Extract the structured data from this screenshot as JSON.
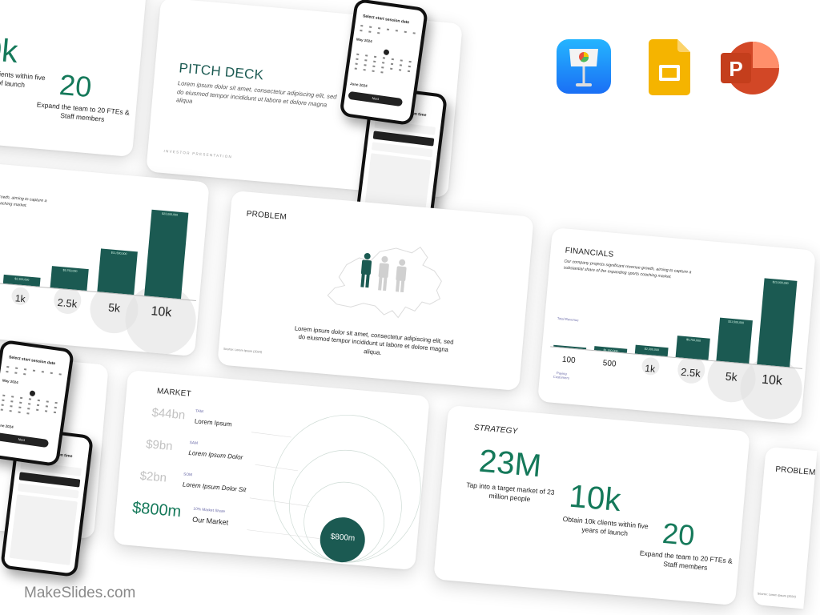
{
  "watermark": "MakeSlides.com",
  "app_icons": [
    "keynote-icon",
    "google-slides-icon",
    "powerpoint-icon"
  ],
  "colors": {
    "brand_dark_green": "#1b5a52",
    "accent_green": "#15795a",
    "muted_gray": "#c2c2c2",
    "tag_purple": "#6a6aa8"
  },
  "strategy": {
    "title": "STRATEGY",
    "stats": [
      {
        "value": "23M",
        "desc": "Tap into a target market of 23 million people"
      },
      {
        "value": "10k",
        "desc": "Obtain 10k clients within five years of launch"
      },
      {
        "value": "20",
        "desc": "Expand the team to 20 FTEs & Staff members"
      }
    ]
  },
  "pitch_deck": {
    "title": "PITCH DECK",
    "body": "Lorem ipsum dolor sit amet, consectetur adipiscing elit, sed do eiusmod tempor incididunt ut labore et dolore magna aliqua",
    "footer": "INVESTOR PRESENTATION",
    "phone_date": {
      "title": "Select start session date",
      "month1": "May 2024",
      "month2": "June 2024",
      "button": "Next"
    },
    "phone_time": {
      "title": "Select start session time"
    }
  },
  "problem": {
    "title": "PROBLEM",
    "body": "Lorem ipsum dolor sit amet, consectetur adipiscing elit, sed do eiusmod tempor incididunt ut labore et dolore magna aliqua.",
    "source": "Source: Lorem Ipsum (2024)"
  },
  "financials": {
    "title": "FINANCIALS",
    "body": "Our company projects significant revenue growth, aiming to capture a substantial share of the expanding sports coaching market.",
    "revenue_label": "Total Revenue",
    "customers_label": "Paying Customers"
  },
  "chart_data": {
    "type": "bar",
    "title": "",
    "xlabel": "Paying Customers",
    "ylabel": "Total Revenue",
    "categories": [
      "100",
      "500",
      "1k",
      "2.5k",
      "5k",
      "10k"
    ],
    "values": [
      230000,
      1150000,
      2300000,
      5750000,
      11500000,
      23000000
    ],
    "data_labels": [
      "",
      "$1,150,000",
      "$2,300,000",
      "$5,750,000",
      "$11,500,000",
      "$23,000,000"
    ],
    "ylim": [
      0,
      23000000
    ],
    "grid": false
  },
  "market": {
    "title": "MARKET",
    "rows": [
      {
        "value": "$44bn",
        "tag": "TAM",
        "name": "Lorem Ipsum"
      },
      {
        "value": "$9bn",
        "tag": "SAM",
        "name": "Lorem Ipsum Dolor"
      },
      {
        "value": "$2bn",
        "tag": "SOM",
        "name": "Lorem Ipsum Dolor Sit"
      },
      {
        "value": "$800m",
        "tag": "10% Market Share",
        "name": "Our Market"
      }
    ],
    "circle_label": "$800m"
  }
}
